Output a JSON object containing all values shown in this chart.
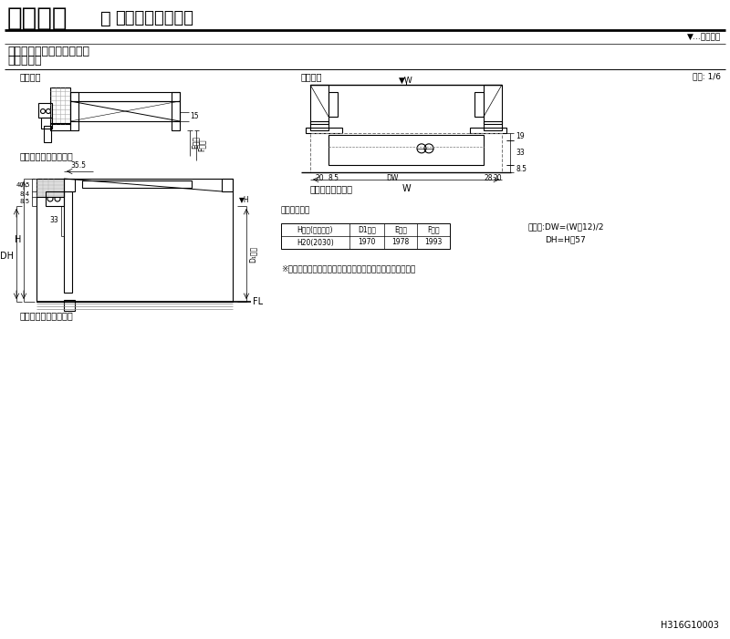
{
  "title_main": "室内引戸",
  "title_separator": "｜",
  "title_sub": "アウトセット方式",
  "subtitle1": "片引戸標準・トイレタイプ",
  "subtitle2": "化粧縁なし",
  "label_scale": "縮尺: 1/6",
  "label_opening": "▼…開口寸法",
  "label_vertical": "縦断面図",
  "label_horizontal": "横断面図",
  "label_upper_ref1": "上部調整材納まり参考",
  "label_upper_ref2": "上部化粧縁納まり参考",
  "label_cosmetic": "化粧縁なし納まり",
  "label_effective": "有効開口寸法",
  "table_headers": [
    "H呼称(枠外寸法)",
    "D1寸法",
    "E寸法",
    "F寸法"
  ],
  "table_data": [
    [
      "H20(2030)",
      "1970",
      "1978",
      "1993"
    ]
  ],
  "formula1": "算出式:DW=(W－12)/2",
  "formula2": "DH=H－57",
  "note": "※化粧縁なし納まりは壁面と扉本体の間に隙間が生じます。",
  "code": "H316G10003",
  "bg_color": "#ffffff",
  "line_color": "#000000",
  "gray_color": "#666666",
  "light_gray": "#cccccc"
}
